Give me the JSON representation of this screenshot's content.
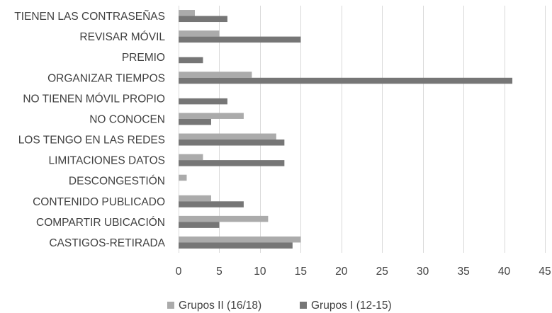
{
  "chart_data": {
    "type": "bar",
    "orientation": "horizontal",
    "categories": [
      "TIENEN LAS CONTRASEÑAS",
      "REVISAR MÓVIL",
      "PREMIO",
      "ORGANIZAR TIEMPOS",
      "NO TIENEN MÓVIL PROPIO",
      "NO CONOCEN",
      "LOS TENGO EN LAS REDES",
      "LIMITACIONES DATOS",
      "DESCONGESTIÓN",
      "CONTENIDO PUBLICADO",
      "COMPARTIR UBICACIÓN",
      "CASTIGOS-RETIRADA"
    ],
    "series": [
      {
        "name": "Grupos II (16/18)",
        "color": "#ababab",
        "values": [
          2,
          5,
          0,
          9,
          0,
          8,
          12,
          3,
          1,
          4,
          11,
          15
        ]
      },
      {
        "name": "Grupos I (12-15)",
        "color": "#767676",
        "values": [
          6,
          15,
          3,
          41,
          6,
          4,
          13,
          13,
          0,
          8,
          5,
          14
        ]
      }
    ],
    "xlim": [
      0,
      45
    ],
    "xticks": [
      0,
      5,
      10,
      15,
      20,
      25,
      30,
      35,
      40,
      45
    ],
    "title": "",
    "xlabel": "",
    "ylabel": "",
    "grid": "vertical",
    "legend": "bottom"
  }
}
